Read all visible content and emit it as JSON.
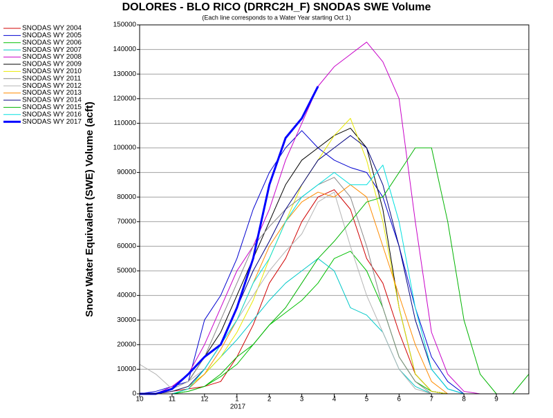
{
  "chart_data": {
    "type": "line",
    "title": "DOLORES - BLO RICO (DRRC2H_F) SNODAS SWE Volume",
    "subtitle": "(Each line corresponds to a Water Year starting Oct 1)",
    "y_label": "Snow Water Equivalent (SWE) Volume (acft)",
    "annotation": "2017",
    "x": [
      0,
      0.5,
      1,
      1.5,
      2,
      2.5,
      3,
      3.5,
      4,
      4.5,
      5,
      5.5,
      6,
      6.5,
      7,
      7.5,
      8,
      8.5,
      9,
      9.5,
      10,
      10.5,
      11,
      11.5,
      12
    ],
    "xlim": [
      0,
      12
    ],
    "xticks": [
      {
        "value": 0,
        "label": "10"
      },
      {
        "value": 1,
        "label": "11"
      },
      {
        "value": 2,
        "label": "12"
      },
      {
        "value": 3,
        "label": "1"
      },
      {
        "value": 4,
        "label": "2"
      },
      {
        "value": 5,
        "label": "3"
      },
      {
        "value": 6,
        "label": "4"
      },
      {
        "value": 7,
        "label": "5"
      },
      {
        "value": 8,
        "label": "6"
      },
      {
        "value": 9,
        "label": "7"
      },
      {
        "value": 10,
        "label": "8"
      },
      {
        "value": 11,
        "label": "9"
      }
    ],
    "ylim": [
      0,
      150000
    ],
    "yticks": [
      0,
      10000,
      20000,
      30000,
      40000,
      50000,
      60000,
      70000,
      80000,
      90000,
      100000,
      110000,
      120000,
      130000,
      140000,
      150000
    ],
    "grid": true,
    "legend": "left",
    "series": [
      {
        "name": "SNODAS WY 2004",
        "color": "#d00000",
        "line_width": 1,
        "values": [
          0,
          0,
          1000,
          2000,
          3000,
          5000,
          15000,
          28000,
          45000,
          55000,
          70000,
          80000,
          83000,
          75000,
          55000,
          45000,
          25000,
          8000,
          1000,
          0,
          0,
          0,
          0,
          0,
          0
        ]
      },
      {
        "name": "SNODAS WY 2005",
        "color": "#0000d0",
        "line_width": 1,
        "values": [
          0,
          1000,
          3000,
          5000,
          30000,
          40000,
          55000,
          75000,
          90000,
          100000,
          107000,
          100000,
          95000,
          92000,
          90000,
          80000,
          60000,
          35000,
          15000,
          5000,
          0,
          0,
          0,
          0,
          0
        ]
      },
      {
        "name": "SNODAS WY 2006",
        "color": "#00c000",
        "line_width": 1,
        "values": [
          0,
          0,
          0,
          1000,
          3000,
          7000,
          12000,
          20000,
          28000,
          33000,
          38000,
          45000,
          55000,
          58000,
          50000,
          35000,
          15000,
          5000,
          1000,
          0,
          0,
          0,
          0,
          0,
          0
        ]
      },
      {
        "name": "SNODAS WY 2007",
        "color": "#00c8c8",
        "line_width": 1,
        "values": [
          0,
          0,
          0,
          2000,
          8000,
          15000,
          22000,
          30000,
          38000,
          45000,
          50000,
          55000,
          50000,
          35000,
          32000,
          25000,
          10000,
          3000,
          0,
          0,
          0,
          0,
          0,
          0,
          0
        ]
      },
      {
        "name": "SNODAS WY 2008",
        "color": "#c800c8",
        "line_width": 1,
        "values": [
          0,
          0,
          3000,
          8000,
          20000,
          35000,
          50000,
          60000,
          75000,
          95000,
          110000,
          125000,
          133000,
          138000,
          143000,
          135000,
          120000,
          70000,
          25000,
          8000,
          1000,
          0,
          0,
          0,
          0
        ]
      },
      {
        "name": "SNODAS WY 2009",
        "color": "#000000",
        "line_width": 1,
        "values": [
          0,
          0,
          2000,
          5000,
          15000,
          25000,
          40000,
          55000,
          70000,
          85000,
          95000,
          100000,
          105000,
          108000,
          100000,
          75000,
          35000,
          8000,
          1000,
          0,
          0,
          0,
          0,
          0,
          0
        ]
      },
      {
        "name": "SNODAS WY 2010",
        "color": "#e8e800",
        "line_width": 1,
        "values": [
          0,
          0,
          1000,
          3000,
          8000,
          15000,
          25000,
          38000,
          55000,
          70000,
          85000,
          95000,
          105000,
          112000,
          95000,
          70000,
          35000,
          8000,
          1000,
          0,
          0,
          0,
          0,
          0,
          0
        ]
      },
      {
        "name": "SNODAS WY 2011",
        "color": "#888888",
        "line_width": 1,
        "values": [
          0,
          0,
          2000,
          5000,
          15000,
          30000,
          45000,
          60000,
          68000,
          75000,
          80000,
          85000,
          88000,
          80000,
          60000,
          35000,
          15000,
          5000,
          0,
          0,
          0,
          0,
          0,
          0,
          0
        ]
      },
      {
        "name": "SNODAS WY 2012",
        "color": "#b4b4b4",
        "line_width": 1,
        "values": [
          12000,
          8000,
          2000,
          5000,
          10000,
          20000,
          30000,
          40000,
          50000,
          58000,
          65000,
          78000,
          82000,
          60000,
          40000,
          25000,
          10000,
          2000,
          0,
          0,
          0,
          0,
          0,
          0,
          0
        ]
      },
      {
        "name": "SNODAS WY 2013",
        "color": "#ff8c00",
        "line_width": 1,
        "values": [
          0,
          0,
          0,
          2000,
          8000,
          18000,
          30000,
          45000,
          60000,
          70000,
          78000,
          82000,
          80000,
          85000,
          80000,
          60000,
          40000,
          20000,
          5000,
          0,
          0,
          0,
          0,
          0,
          0
        ]
      },
      {
        "name": "SNODAS WY 2014",
        "color": "#000080",
        "line_width": 1,
        "values": [
          0,
          0,
          1000,
          3000,
          10000,
          20000,
          35000,
          50000,
          62000,
          75000,
          85000,
          95000,
          100000,
          105000,
          100000,
          85000,
          60000,
          30000,
          10000,
          2000,
          0,
          0,
          0,
          0,
          0
        ]
      },
      {
        "name": "SNODAS WY 2015",
        "color": "#00b400",
        "line_width": 1,
        "values": [
          0,
          0,
          0,
          1000,
          3000,
          8000,
          15000,
          20000,
          28000,
          35000,
          45000,
          55000,
          62000,
          70000,
          78000,
          80000,
          90000,
          100000,
          100000,
          70000,
          30000,
          8000,
          0,
          0,
          8000
        ]
      },
      {
        "name": "SNODAS WY 2016",
        "color": "#00e0e0",
        "line_width": 1,
        "values": [
          0,
          0,
          0,
          2000,
          10000,
          20000,
          30000,
          45000,
          55000,
          70000,
          80000,
          85000,
          90000,
          85000,
          85000,
          93000,
          70000,
          35000,
          10000,
          2000,
          0,
          0,
          0,
          0,
          0
        ]
      },
      {
        "name": "SNODAS WY 2017",
        "color": "#0000ff",
        "line_width": 3,
        "values": [
          0,
          0,
          2000,
          8000,
          15000,
          20000,
          35000,
          55000,
          85000,
          104000,
          112000,
          125000,
          null,
          null,
          null,
          null,
          null,
          null,
          null,
          null,
          null,
          null,
          null,
          null,
          null
        ]
      }
    ]
  }
}
